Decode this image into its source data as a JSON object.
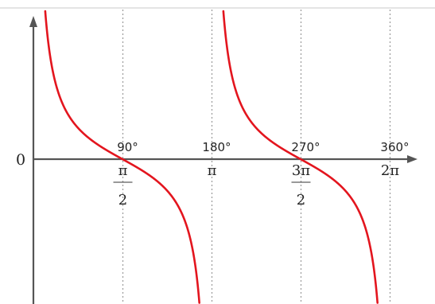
{
  "chart_data": {
    "type": "line",
    "function": "cot(x)",
    "curve_color": "#e3151e",
    "axis_color": "#555555",
    "guide_color": "#a0a0a0",
    "xlim": [
      -8,
      360
    ],
    "ylim": [
      -4.6,
      4.8
    ],
    "origin_label": "0",
    "vertical_guides": [
      90,
      180,
      270,
      360
    ],
    "grid": false,
    "x_ticks": [
      {
        "value": 90,
        "degree": "90°",
        "radian": {
          "kind": "fraction",
          "num": "π",
          "den": "2"
        }
      },
      {
        "value": 180,
        "degree": "180°",
        "radian": {
          "kind": "plain",
          "text": "π"
        }
      },
      {
        "value": 270,
        "degree": "270°",
        "radian": {
          "kind": "fraction",
          "num": "3π",
          "den": "2"
        }
      },
      {
        "value": 360,
        "degree": "360°",
        "radian": {
          "kind": "plain",
          "text": "2π"
        }
      }
    ],
    "branches": [
      {
        "x": [
          0.5,
          180
        ],
        "asymptotes": [
          0,
          180
        ]
      },
      {
        "x": [
          180,
          360
        ],
        "asymptotes": [
          180,
          360
        ]
      }
    ]
  }
}
